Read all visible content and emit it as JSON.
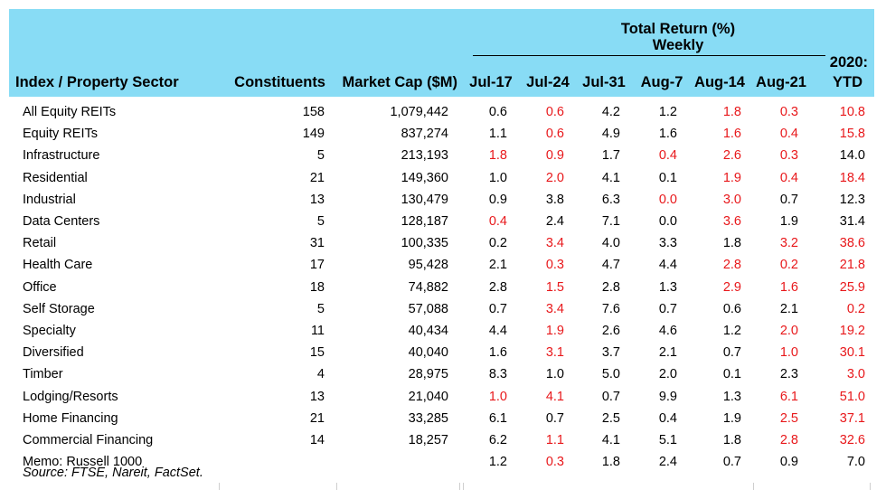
{
  "header": {
    "group_title": "Total Return (%)",
    "group_subtitle": "Weekly",
    "col_sector": "Index / Property Sector",
    "col_constituents": "Constituents",
    "col_mcap": "Market Cap ($M)",
    "weeks": [
      "Jul-17",
      "Jul-24",
      "Jul-31",
      "Aug-7",
      "Aug-14",
      "Aug-21"
    ],
    "ytd_line1": "2020:",
    "ytd_line2": "YTD"
  },
  "colors": {
    "header_bg": "#88dcf5",
    "negative": "#e8181b"
  },
  "rows": [
    {
      "name": "All Equity REITs",
      "constituents": "158",
      "mcap": "1,079,442",
      "weekly": [
        "0.6",
        "0.6",
        "4.2",
        "1.2",
        "1.8",
        "0.3"
      ],
      "ytd": "10.8",
      "neg": [
        false,
        true,
        false,
        false,
        true,
        true
      ],
      "ytd_neg": true
    },
    {
      "name": "Equity REITs",
      "constituents": "149",
      "mcap": "837,274",
      "weekly": [
        "1.1",
        "0.6",
        "4.9",
        "1.6",
        "1.6",
        "0.4"
      ],
      "ytd": "15.8",
      "neg": [
        false,
        true,
        false,
        false,
        true,
        true
      ],
      "ytd_neg": true
    },
    {
      "name": "Infrastructure",
      "constituents": "5",
      "mcap": "213,193",
      "weekly": [
        "1.8",
        "0.9",
        "1.7",
        "0.4",
        "2.6",
        "0.3"
      ],
      "ytd": "14.0",
      "neg": [
        true,
        true,
        false,
        true,
        true,
        true
      ],
      "ytd_neg": false
    },
    {
      "name": "Residential",
      "constituents": "21",
      "mcap": "149,360",
      "weekly": [
        "1.0",
        "2.0",
        "4.1",
        "0.1",
        "1.9",
        "0.4"
      ],
      "ytd": "18.4",
      "neg": [
        false,
        true,
        false,
        false,
        true,
        true
      ],
      "ytd_neg": true
    },
    {
      "name": "Industrial",
      "constituents": "13",
      "mcap": "130,479",
      "weekly": [
        "0.9",
        "3.8",
        "6.3",
        "0.0",
        "3.0",
        "0.7"
      ],
      "ytd": "12.3",
      "neg": [
        false,
        false,
        false,
        true,
        true,
        false
      ],
      "ytd_neg": false
    },
    {
      "name": "Data Centers",
      "constituents": "5",
      "mcap": "128,187",
      "weekly": [
        "0.4",
        "2.4",
        "7.1",
        "0.0",
        "3.6",
        "1.9"
      ],
      "ytd": "31.4",
      "neg": [
        true,
        false,
        false,
        false,
        true,
        false
      ],
      "ytd_neg": false
    },
    {
      "name": "Retail",
      "constituents": "31",
      "mcap": "100,335",
      "weekly": [
        "0.2",
        "3.4",
        "4.0",
        "3.3",
        "1.8",
        "3.2"
      ],
      "ytd": "38.6",
      "neg": [
        false,
        true,
        false,
        false,
        false,
        true
      ],
      "ytd_neg": true
    },
    {
      "name": "Health Care",
      "constituents": "17",
      "mcap": "95,428",
      "weekly": [
        "2.1",
        "0.3",
        "4.7",
        "4.4",
        "2.8",
        "0.2"
      ],
      "ytd": "21.8",
      "neg": [
        false,
        true,
        false,
        false,
        true,
        true
      ],
      "ytd_neg": true
    },
    {
      "name": "Office",
      "constituents": "18",
      "mcap": "74,882",
      "weekly": [
        "2.8",
        "1.5",
        "2.8",
        "1.3",
        "2.9",
        "1.6"
      ],
      "ytd": "25.9",
      "neg": [
        false,
        true,
        false,
        false,
        true,
        true
      ],
      "ytd_neg": true
    },
    {
      "name": "Self Storage",
      "constituents": "5",
      "mcap": "57,088",
      "weekly": [
        "0.7",
        "3.4",
        "7.6",
        "0.7",
        "0.6",
        "2.1"
      ],
      "ytd": "0.2",
      "neg": [
        false,
        true,
        false,
        false,
        false,
        false
      ],
      "ytd_neg": true
    },
    {
      "name": "Specialty",
      "constituents": "11",
      "mcap": "40,434",
      "weekly": [
        "4.4",
        "1.9",
        "2.6",
        "4.6",
        "1.2",
        "2.0"
      ],
      "ytd": "19.2",
      "neg": [
        false,
        true,
        false,
        false,
        false,
        true
      ],
      "ytd_neg": true
    },
    {
      "name": "Diversified",
      "constituents": "15",
      "mcap": "40,040",
      "weekly": [
        "1.6",
        "3.1",
        "3.7",
        "2.1",
        "0.7",
        "1.0"
      ],
      "ytd": "30.1",
      "neg": [
        false,
        true,
        false,
        false,
        false,
        true
      ],
      "ytd_neg": true
    },
    {
      "name": "Timber",
      "constituents": "4",
      "mcap": "28,975",
      "weekly": [
        "8.3",
        "1.0",
        "5.0",
        "2.0",
        "0.1",
        "2.3"
      ],
      "ytd": "3.0",
      "neg": [
        false,
        false,
        false,
        false,
        false,
        false
      ],
      "ytd_neg": true
    },
    {
      "name": "Lodging/Resorts",
      "constituents": "13",
      "mcap": "21,040",
      "weekly": [
        "1.0",
        "4.1",
        "0.7",
        "9.9",
        "1.3",
        "6.1"
      ],
      "ytd": "51.0",
      "neg": [
        true,
        true,
        false,
        false,
        false,
        true
      ],
      "ytd_neg": true
    },
    {
      "name": "Home Financing",
      "constituents": "21",
      "mcap": "33,285",
      "weekly": [
        "6.1",
        "0.7",
        "2.5",
        "0.4",
        "1.9",
        "2.5"
      ],
      "ytd": "37.1",
      "neg": [
        false,
        false,
        false,
        false,
        false,
        true
      ],
      "ytd_neg": true
    },
    {
      "name": "Commercial Financing",
      "constituents": "14",
      "mcap": "18,257",
      "weekly": [
        "6.2",
        "1.1",
        "4.1",
        "5.1",
        "1.8",
        "2.8"
      ],
      "ytd": "32.6",
      "neg": [
        false,
        true,
        false,
        false,
        false,
        true
      ],
      "ytd_neg": true
    },
    {
      "name": "Memo: Russell 1000",
      "constituents": "",
      "mcap": "",
      "weekly": [
        "1.2",
        "0.3",
        "1.8",
        "2.4",
        "0.7",
        "0.9"
      ],
      "ytd": "7.0",
      "neg": [
        false,
        true,
        false,
        false,
        false,
        false
      ],
      "ytd_neg": false
    }
  ],
  "source": "Source: FTSE, Nareit, FactSet."
}
